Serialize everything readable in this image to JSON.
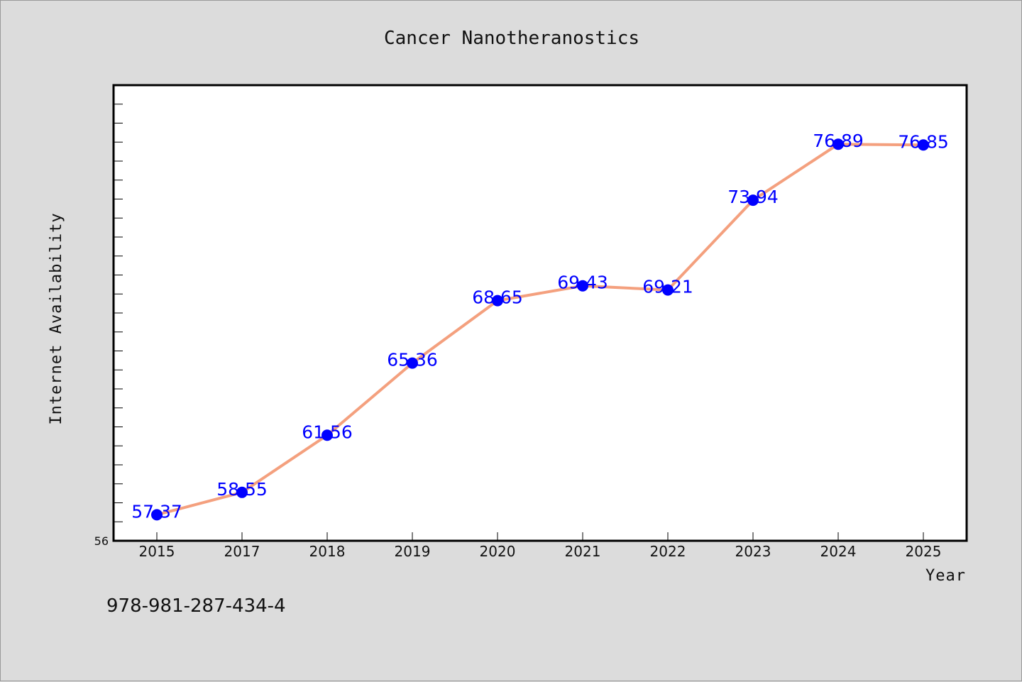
{
  "isbn": "978-981-287-434-4",
  "chart_data": {
    "type": "line",
    "title": "Cancer Nanotheranostics",
    "xlabel": "Year",
    "ylabel": "Internet Availability",
    "categories": [
      "2015",
      "2017",
      "2018",
      "2019",
      "2020",
      "2021",
      "2022",
      "2023",
      "2024",
      "2025"
    ],
    "series": [
      {
        "values": [
          57.37,
          58.55,
          61.56,
          65.36,
          68.65,
          69.43,
          69.21,
          73.94,
          76.89,
          76.85
        ],
        "labels": [
          "57.37",
          "58.55",
          "61.56",
          "65.36",
          "68.65",
          "69.43",
          "69.21",
          "73.94",
          "76.89",
          "76.85"
        ],
        "line_color": "#f4a07e",
        "marker_color": "#0000ff"
      }
    ],
    "ylim": [
      56,
      80
    ],
    "y_tick_labels": [
      "56"
    ],
    "y_minor_step": 1,
    "grid": false,
    "legend": "none"
  }
}
